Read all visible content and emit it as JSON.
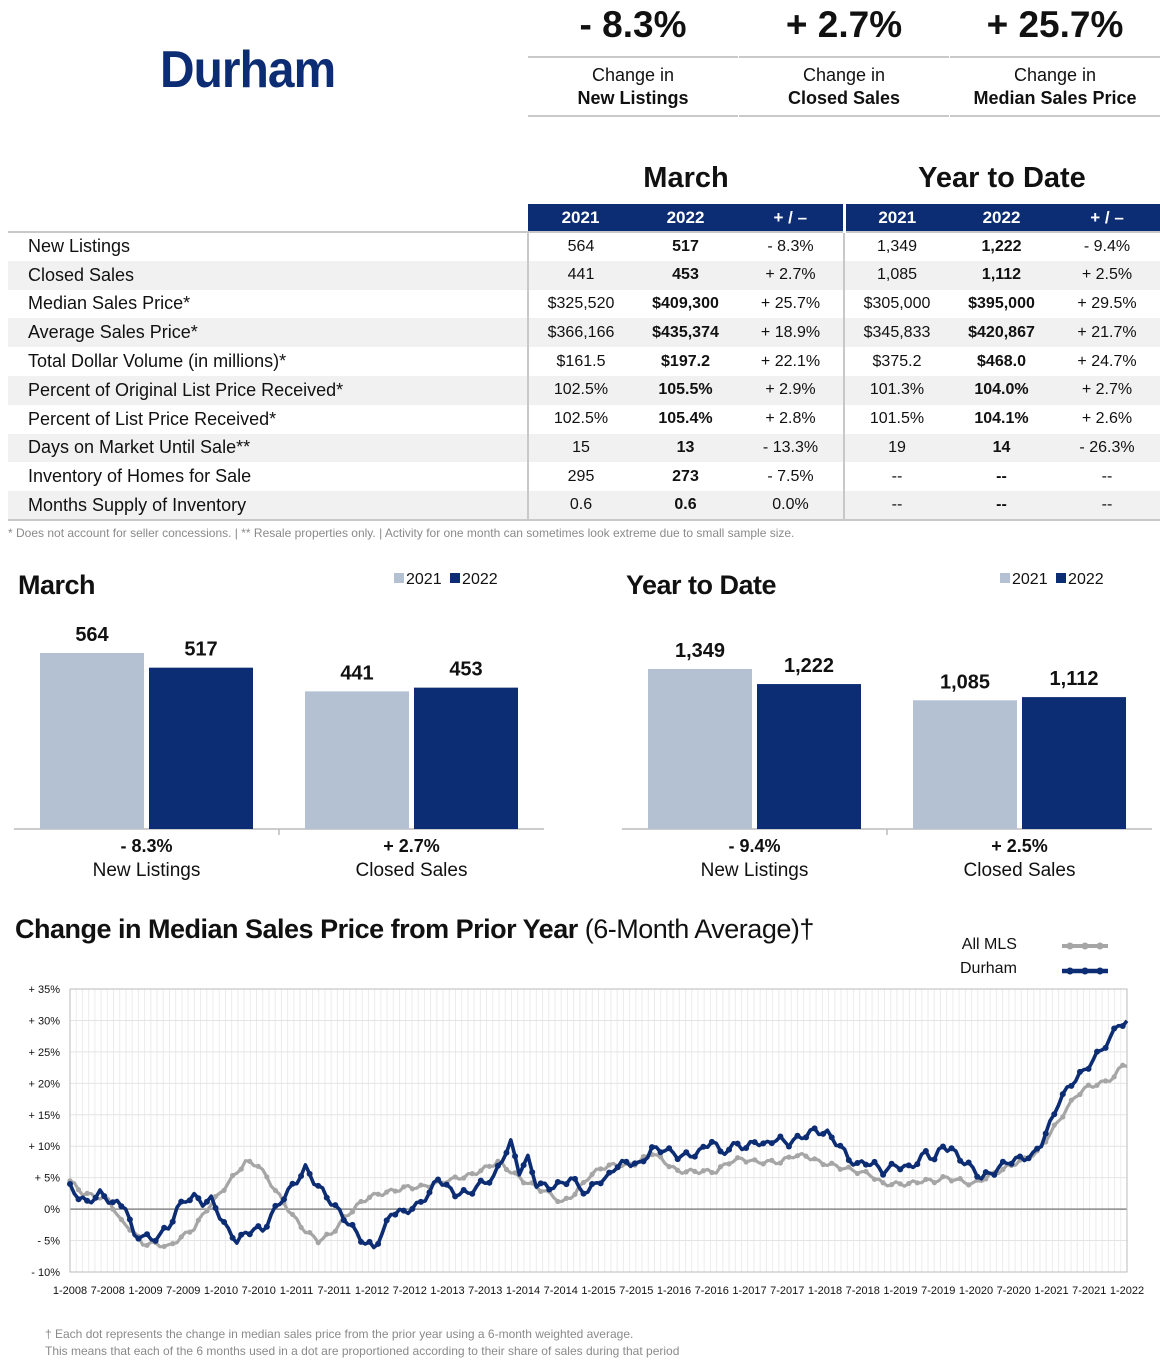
{
  "area": "Durham",
  "kpis": [
    {
      "value": "- 8.3%",
      "label_line1": "Change in",
      "label_line2": "New Listings"
    },
    {
      "value": "+ 2.7%",
      "label_line1": "Change in",
      "label_line2": "Closed Sales"
    },
    {
      "value": "+ 25.7%",
      "label_line1": "Change in",
      "label_line2": "Median Sales Price"
    }
  ],
  "table": {
    "period_month": "March",
    "period_ytd": "Year to Date",
    "col_headers": [
      "2021",
      "2022",
      "+ / –",
      "2021",
      "2022",
      "+ / –"
    ],
    "rows": [
      {
        "label": "New Listings",
        "m2021": "564",
        "m2022": "517",
        "mchg": "- 8.3%",
        "y2021": "1,349",
        "y2022": "1,222",
        "ychg": "- 9.4%"
      },
      {
        "label": "Closed Sales",
        "m2021": "441",
        "m2022": "453",
        "mchg": "+ 2.7%",
        "y2021": "1,085",
        "y2022": "1,112",
        "ychg": "+ 2.5%"
      },
      {
        "label": "Median Sales Price*",
        "m2021": "$325,520",
        "m2022": "$409,300",
        "mchg": "+ 25.7%",
        "y2021": "$305,000",
        "y2022": "$395,000",
        "ychg": "+ 29.5%"
      },
      {
        "label": "Average Sales Price*",
        "m2021": "$366,166",
        "m2022": "$435,374",
        "mchg": "+ 18.9%",
        "y2021": "$345,833",
        "y2022": "$420,867",
        "ychg": "+ 21.7%"
      },
      {
        "label": "Total Dollar Volume (in millions)*",
        "m2021": "$161.5",
        "m2022": "$197.2",
        "mchg": "+ 22.1%",
        "y2021": "$375.2",
        "y2022": "$468.0",
        "ychg": "+ 24.7%"
      },
      {
        "label": "Percent of Original List Price Received*",
        "m2021": "102.5%",
        "m2022": "105.5%",
        "mchg": "+ 2.9%",
        "y2021": "101.3%",
        "y2022": "104.0%",
        "ychg": "+ 2.7%"
      },
      {
        "label": "Percent of List Price Received*",
        "m2021": "102.5%",
        "m2022": "105.4%",
        "mchg": "+ 2.8%",
        "y2021": "101.5%",
        "y2022": "104.1%",
        "ychg": "+ 2.6%"
      },
      {
        "label": "Days on Market Until Sale**",
        "m2021": "15",
        "m2022": "13",
        "mchg": "- 13.3%",
        "y2021": "19",
        "y2022": "14",
        "ychg": "- 26.3%"
      },
      {
        "label": "Inventory of Homes for Sale",
        "m2021": "295",
        "m2022": "273",
        "mchg": "- 7.5%",
        "y2021": "--",
        "y2022": "--",
        "ychg": "--"
      },
      {
        "label": "Months Supply of Inventory",
        "m2021": "0.6",
        "m2022": "0.6",
        "mchg": "0.0%",
        "y2021": "--",
        "y2022": "--",
        "ychg": "--"
      }
    ],
    "footnote": "* Does not account for seller concessions.  |  ** Resale properties only.  |  Activity for one month can sometimes look extreme due to small sample size."
  },
  "colors": {
    "navy": "#0c2c73",
    "light": "#b3c1d2",
    "gray_line": "#a6a6a6"
  },
  "chart_data": [
    {
      "type": "bar",
      "title": "March",
      "legend": [
        "2021",
        "2022"
      ],
      "groups": [
        {
          "name": "New Listings",
          "change": "- 8.3%",
          "values": [
            564,
            517
          ],
          "labels": [
            "564",
            "517"
          ]
        },
        {
          "name": "Closed Sales",
          "change": "+ 2.7%",
          "values": [
            441,
            453
          ],
          "labels": [
            "441",
            "453"
          ]
        }
      ]
    },
    {
      "type": "bar",
      "title": "Year to Date",
      "legend": [
        "2021",
        "2022"
      ],
      "groups": [
        {
          "name": "New Listings",
          "change": "- 9.4%",
          "values": [
            1349,
            1222
          ],
          "labels": [
            "1,349",
            "1,222"
          ]
        },
        {
          "name": "Closed Sales",
          "change": "+ 2.5%",
          "values": [
            1085,
            1112
          ],
          "labels": [
            "1,085",
            "1,112"
          ]
        }
      ]
    },
    {
      "type": "line",
      "title_bold": "Change in Median Sales Price from Prior Year",
      "title_rest": " (6-Month Average)†",
      "ylim": [
        -10,
        35
      ],
      "yticks": [
        "- 10%",
        "- 5%",
        "0%",
        "+ 5%",
        "+ 10%",
        "+ 15%",
        "+ 20%",
        "+ 25%",
        "+ 30%",
        "+ 35%"
      ],
      "xticks": [
        "1-2008",
        "7-2008",
        "1-2009",
        "7-2009",
        "1-2010",
        "7-2010",
        "1-2011",
        "7-2011",
        "1-2012",
        "7-2012",
        "1-2013",
        "7-2013",
        "1-2014",
        "7-2014",
        "1-2015",
        "7-2015",
        "1-2016",
        "7-2016",
        "1-2017",
        "7-2017",
        "1-2018",
        "7-2018",
        "1-2019",
        "7-2019",
        "1-2020",
        "7-2020",
        "1-2021",
        "7-2021",
        "1-2022"
      ],
      "series": [
        {
          "name": "All MLS",
          "color": "#a6a6a6",
          "anchors": [
            [
              0,
              4.5
            ],
            [
              3,
              2.5
            ],
            [
              6,
              2.0
            ],
            [
              9,
              1.5
            ],
            [
              12,
              -2
            ],
            [
              14,
              -3
            ],
            [
              17,
              -5.5
            ],
            [
              20,
              -5.5
            ],
            [
              23,
              -6
            ],
            [
              26,
              -4.5
            ],
            [
              29,
              -3
            ],
            [
              32,
              0
            ],
            [
              35,
              2.5
            ],
            [
              38,
              5
            ],
            [
              41,
              7.5
            ],
            [
              44,
              7
            ],
            [
              46,
              5
            ],
            [
              49,
              2
            ],
            [
              52,
              -1
            ],
            [
              55,
              -3.5
            ],
            [
              58,
              -5
            ],
            [
              61,
              -4
            ],
            [
              64,
              -1.5
            ],
            [
              67,
              0.5
            ],
            [
              70,
              2
            ],
            [
              73,
              2.5
            ],
            [
              76,
              3
            ],
            [
              79,
              3.5
            ],
            [
              82,
              3.5
            ],
            [
              85,
              4
            ],
            [
              88,
              4.5
            ],
            [
              91,
              5
            ],
            [
              94,
              5.5
            ],
            [
              97,
              6.5
            ],
            [
              100,
              7.5
            ],
            [
              103,
              6
            ],
            [
              106,
              4.5
            ],
            [
              109,
              3.5
            ],
            [
              112,
              2.5
            ],
            [
              115,
              1
            ],
            [
              118,
              2.5
            ],
            [
              121,
              5
            ],
            [
              124,
              6.5
            ],
            [
              127,
              7
            ],
            [
              130,
              7
            ],
            [
              133,
              7.5
            ],
            [
              136,
              9
            ],
            [
              139,
              7.5
            ],
            [
              142,
              6
            ],
            [
              145,
              6
            ],
            [
              148,
              6
            ],
            [
              151,
              6
            ],
            [
              154,
              7.5
            ],
            [
              157,
              8
            ],
            [
              160,
              7.5
            ],
            [
              163,
              7.5
            ],
            [
              166,
              7.5
            ],
            [
              169,
              8.5
            ],
            [
              172,
              8.5
            ],
            [
              175,
              7.5
            ],
            [
              178,
              7
            ],
            [
              181,
              6.5
            ],
            [
              184,
              6
            ],
            [
              187,
              5.5
            ],
            [
              190,
              4
            ],
            [
              193,
              4
            ],
            [
              196,
              4
            ],
            [
              199,
              4.5
            ],
            [
              202,
              4.5
            ],
            [
              205,
              5
            ],
            [
              208,
              4.5
            ],
            [
              211,
              4
            ],
            [
              214,
              5
            ],
            [
              217,
              6
            ],
            [
              220,
              7
            ],
            [
              223,
              8
            ],
            [
              226,
              9
            ],
            [
              229,
              12
            ],
            [
              232,
              15
            ],
            [
              235,
              18
            ],
            [
              238,
              19.5
            ],
            [
              241,
              20
            ],
            [
              244,
              21
            ],
            [
              246,
              23
            ]
          ]
        },
        {
          "name": "Durham",
          "color": "#0c2c73",
          "anchors": [
            [
              0,
              3.5
            ],
            [
              2,
              2
            ],
            [
              4,
              1
            ],
            [
              7,
              2.5
            ],
            [
              10,
              1
            ],
            [
              13,
              0.5
            ],
            [
              15,
              -4.5
            ],
            [
              17,
              -4
            ],
            [
              19,
              -5
            ],
            [
              21,
              -4
            ],
            [
              23,
              -3
            ],
            [
              25,
              0
            ],
            [
              27,
              1.5
            ],
            [
              29,
              2
            ],
            [
              31,
              1
            ],
            [
              33,
              1.5
            ],
            [
              35,
              -1
            ],
            [
              37,
              -3.5
            ],
            [
              39,
              -5
            ],
            [
              41,
              -4
            ],
            [
              43,
              -3
            ],
            [
              45,
              -3.5
            ],
            [
              47,
              -1
            ],
            [
              50,
              2
            ],
            [
              53,
              4.5
            ],
            [
              55,
              6.5
            ],
            [
              57,
              4.5
            ],
            [
              60,
              2
            ],
            [
              63,
              -0.5
            ],
            [
              66,
              -3
            ],
            [
              69,
              -5.5
            ],
            [
              71,
              -6
            ],
            [
              73,
              -4
            ],
            [
              75,
              -0.5
            ],
            [
              78,
              -0.5
            ],
            [
              81,
              0.5
            ],
            [
              84,
              2.5
            ],
            [
              86,
              5
            ],
            [
              88,
              3.5
            ],
            [
              90,
              2.5
            ],
            [
              93,
              2.5
            ],
            [
              96,
              4
            ],
            [
              99,
              5
            ],
            [
              101,
              8
            ],
            [
              103,
              10.5
            ],
            [
              105,
              6
            ],
            [
              107,
              8
            ],
            [
              109,
              4
            ],
            [
              112,
              3.5
            ],
            [
              115,
              4
            ],
            [
              117,
              5
            ],
            [
              119,
              3.5
            ],
            [
              121,
              2.5
            ],
            [
              123,
              4.5
            ],
            [
              125,
              4.5
            ],
            [
              127,
              6.5
            ],
            [
              130,
              7.5
            ],
            [
              133,
              7
            ],
            [
              136,
              9.5
            ],
            [
              139,
              9.5
            ],
            [
              142,
              8.5
            ],
            [
              145,
              8.5
            ],
            [
              148,
              9.5
            ],
            [
              150,
              11
            ],
            [
              152,
              9
            ],
            [
              154,
              9.5
            ],
            [
              156,
              10.5
            ],
            [
              158,
              9.5
            ],
            [
              160,
              11
            ],
            [
              162,
              10
            ],
            [
              164,
              11
            ],
            [
              166,
              11
            ],
            [
              168,
              10.5
            ],
            [
              171,
              11.5
            ],
            [
              174,
              12.5
            ],
            [
              177,
              12
            ],
            [
              180,
              10
            ],
            [
              182,
              8
            ],
            [
              184,
              7
            ],
            [
              186,
              7.5
            ],
            [
              188,
              7
            ],
            [
              190,
              6
            ],
            [
              193,
              7
            ],
            [
              196,
              6.5
            ],
            [
              198,
              7.5
            ],
            [
              200,
              9
            ],
            [
              202,
              8
            ],
            [
              204,
              10
            ],
            [
              206,
              9.5
            ],
            [
              208,
              8
            ],
            [
              210,
              7
            ],
            [
              213,
              5
            ],
            [
              216,
              6
            ],
            [
              219,
              7.5
            ],
            [
              222,
              8
            ],
            [
              225,
              8.5
            ],
            [
              227,
              10.5
            ],
            [
              229,
              13.5
            ],
            [
              231,
              17
            ],
            [
              234,
              20
            ],
            [
              237,
              22
            ],
            [
              240,
              24.5
            ],
            [
              243,
              27
            ],
            [
              245,
              29.5
            ],
            [
              247,
              29.5
            ]
          ]
        }
      ]
    }
  ],
  "line_footnote1": "† Each dot represents the change in median sales price from the prior year using a 6-month weighted average.",
  "line_footnote2": "This means that each of the 6 months used in a dot are proportioned according to their share of sales during that period"
}
